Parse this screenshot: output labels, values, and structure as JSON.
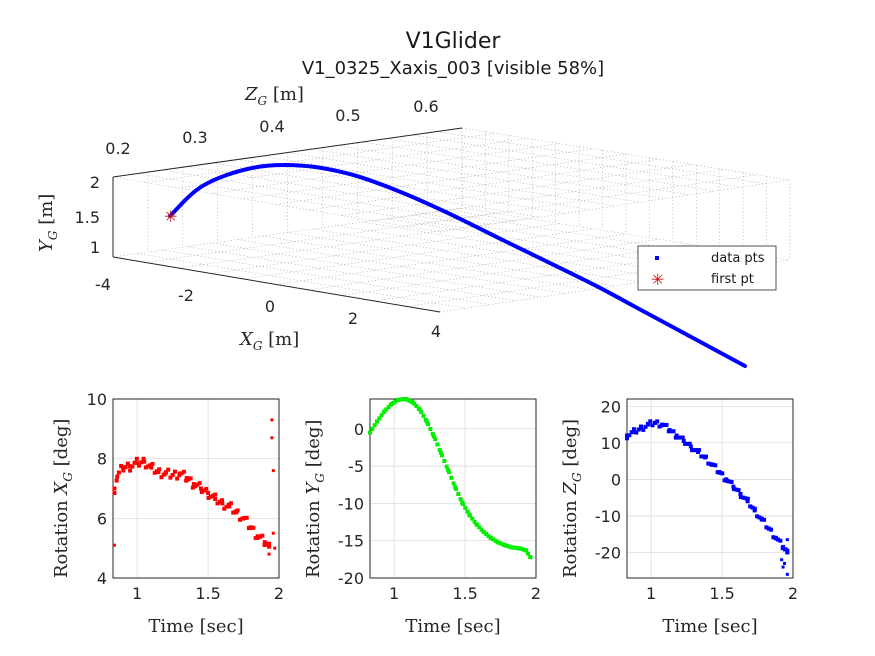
{
  "title": "V1Glider",
  "subtitle": "V1_0325_Xaxis_003 [visible 58%]",
  "legend": {
    "entries": [
      "data pts",
      "first pt"
    ],
    "placement": "inside-lower-right"
  },
  "colors": {
    "trajectory": "#0000ff",
    "first_point": "#cc1111",
    "rot_x": "#ff0000",
    "rot_y": "#00ee00",
    "rot_z": "#0000ff",
    "axes": "#262626",
    "grid": "#d6d6d6"
  },
  "panel3d": {
    "zlabel_var": "Z",
    "zlabel_sub": "G",
    "zlabel_unit": " [m]",
    "ylabel_var": "Y",
    "ylabel_sub": "G",
    "ylabel_unit": " [m]",
    "xlabel_var": "X",
    "xlabel_sub": "G",
    "xlabel_unit": " [m]",
    "z_ticks": [
      "0.2",
      "0.3",
      "0.4",
      "0.5",
      "0.6"
    ],
    "y_ticks": [
      "2",
      "1.5",
      "1"
    ],
    "x_ticks": [
      "-4",
      "-2",
      "0",
      "2",
      "4"
    ]
  },
  "chart_data": [
    {
      "type": "scatter",
      "panel": "3d-trajectory",
      "title": "V1Glider",
      "subtitle": "V1_0325_Xaxis_003 [visible 58%]",
      "xlabel": "X_G [m]",
      "ylabel": "Y_G [m]",
      "zlabel": "Z_G [m]",
      "xlim": [
        -4,
        4
      ],
      "ylim": [
        0.8,
        2
      ],
      "zlim": [
        0.2,
        0.65
      ],
      "grid": true,
      "series": [
        {
          "name": "data pts",
          "x": [
            -3.0,
            -2.6,
            -2.0,
            -1.4,
            -0.8,
            -0.2,
            0.4,
            1.0,
            1.6,
            2.2,
            2.8,
            3.4,
            4.0
          ],
          "y": [
            1.4,
            1.55,
            1.65,
            1.68,
            1.66,
            1.6,
            1.52,
            1.43,
            1.34,
            1.25,
            1.15,
            1.05,
            0.95
          ],
          "z": [
            0.2,
            0.22,
            0.25,
            0.28,
            0.31,
            0.34,
            0.37,
            0.41,
            0.44,
            0.48,
            0.52,
            0.56,
            0.6
          ]
        },
        {
          "name": "first pt",
          "x": [
            -3.0
          ],
          "y": [
            1.4
          ],
          "z": [
            0.2
          ]
        }
      ]
    },
    {
      "type": "scatter",
      "panel": "rotation-x",
      "xlabel": "Time [sec]",
      "ylabel": "Rotation X_G [deg]",
      "ylabel_var": "X",
      "ylabel_sub": "G",
      "xlim": [
        0.83,
        2.0
      ],
      "ylim": [
        4,
        10
      ],
      "xticks": [
        1,
        1.5,
        2
      ],
      "yticks": [
        4,
        6,
        8,
        10
      ],
      "grid": true,
      "series": [
        {
          "x": [
            0.84,
            0.86,
            0.9,
            0.95,
            1.0,
            1.05,
            1.1,
            1.15,
            1.2,
            1.25,
            1.3,
            1.35,
            1.4,
            1.45,
            1.5,
            1.55,
            1.6,
            1.65,
            1.7,
            1.75,
            1.8,
            1.85,
            1.9,
            1.93
          ],
          "y": [
            7.0,
            7.4,
            7.7,
            7.75,
            7.85,
            7.9,
            7.7,
            7.55,
            7.5,
            7.45,
            7.5,
            7.35,
            7.15,
            7.0,
            6.85,
            6.65,
            6.5,
            6.4,
            6.2,
            6.0,
            5.7,
            5.4,
            5.2,
            5.05
          ],
          "outliers_x": [
            0.84,
            1.93,
            1.95,
            1.95,
            1.96,
            1.96,
            1.97
          ],
          "outliers_y": [
            5.1,
            4.8,
            9.3,
            8.7,
            7.6,
            5.5,
            5.0
          ]
        }
      ]
    },
    {
      "type": "scatter",
      "panel": "rotation-y",
      "xlabel": "Time [sec]",
      "ylabel": "Rotation Y_G [deg]",
      "ylabel_var": "Y",
      "ylabel_sub": "G",
      "xlim": [
        0.83,
        2.0
      ],
      "ylim": [
        -20,
        4
      ],
      "xticks": [
        1,
        1.5,
        2
      ],
      "yticks": [
        -20,
        -15,
        -10,
        -5,
        0
      ],
      "grid": true,
      "series": [
        {
          "x": [
            0.83,
            0.88,
            0.93,
            0.98,
            1.03,
            1.08,
            1.13,
            1.18,
            1.23,
            1.28,
            1.33,
            1.38,
            1.43,
            1.48,
            1.53,
            1.58,
            1.63,
            1.68,
            1.73,
            1.78,
            1.83,
            1.88,
            1.93,
            1.96
          ],
          "y": [
            -0.5,
            1.0,
            2.3,
            3.3,
            3.9,
            4.0,
            3.6,
            2.6,
            1.0,
            -1.0,
            -3.2,
            -5.5,
            -7.8,
            -9.9,
            -11.5,
            -12.8,
            -13.8,
            -14.6,
            -15.2,
            -15.6,
            -15.9,
            -16.0,
            -16.3,
            -17.2
          ]
        }
      ]
    },
    {
      "type": "scatter",
      "panel": "rotation-z",
      "xlabel": "Time [sec]",
      "ylabel": "Rotation Z_G [deg]",
      "ylabel_var": "Z",
      "ylabel_sub": "G",
      "xlim": [
        0.83,
        2.0
      ],
      "ylim": [
        -27,
        22
      ],
      "xticks": [
        1,
        1.5,
        2
      ],
      "yticks": [
        -20,
        -10,
        0,
        10,
        20
      ],
      "grid": true,
      "series": [
        {
          "x": [
            0.83,
            0.88,
            0.93,
            0.98,
            1.03,
            1.08,
            1.13,
            1.18,
            1.23,
            1.28,
            1.33,
            1.38,
            1.43,
            1.48,
            1.53,
            1.58,
            1.63,
            1.68,
            1.73,
            1.78,
            1.83,
            1.88,
            1.93,
            1.96
          ],
          "y": [
            12.0,
            13.0,
            14.0,
            15.0,
            15.5,
            15.0,
            13.5,
            12.0,
            10.5,
            9.0,
            7.5,
            6.0,
            4.0,
            2.0,
            0.0,
            -2.0,
            -4.0,
            -6.0,
            -8.5,
            -11.0,
            -13.5,
            -16.0,
            -18.5,
            -20.0
          ],
          "outliers_x": [
            1.92,
            1.93,
            1.94,
            1.95,
            1.96,
            1.96
          ],
          "outliers_y": [
            -22.0,
            -24.0,
            -23.0,
            -19.0,
            -26.0,
            -16.5
          ]
        }
      ]
    }
  ]
}
